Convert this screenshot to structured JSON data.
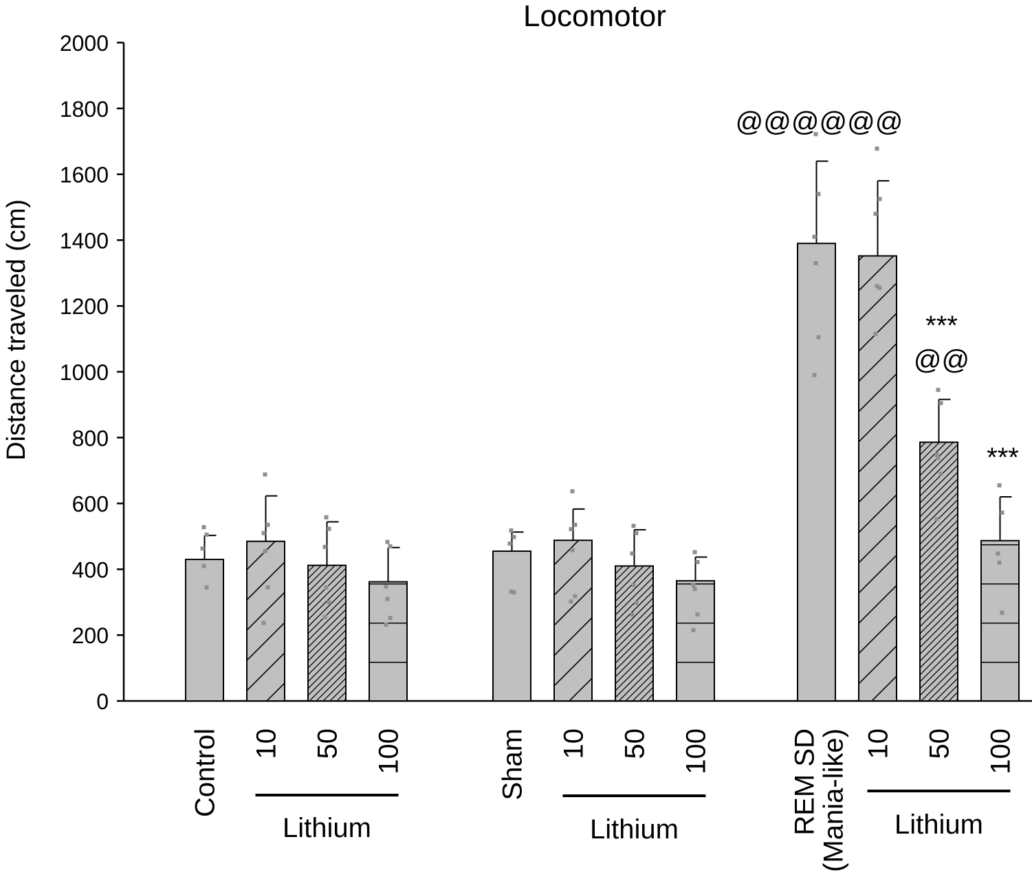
{
  "chart_data": {
    "type": "bar",
    "title": "Locomotor",
    "ylabel": "Distance traveled (cm)",
    "xlabel": "",
    "ylim": [
      0,
      2000
    ],
    "yticks": [
      0,
      200,
      400,
      600,
      800,
      1000,
      1200,
      1400,
      1600,
      1800,
      2000
    ],
    "grid": false,
    "colors": {
      "bar_fill": "#c0c0c0",
      "dots": "#8f8f8f",
      "stroke": "#000000"
    },
    "groups": [
      {
        "bars": [
          {
            "label": "Control",
            "value": 430,
            "error": 73,
            "pattern": "solid",
            "points": [
              528,
              505,
              463,
              410,
              345
            ]
          },
          {
            "label": "10",
            "value": 485,
            "error": 138,
            "pattern": "hatch-wide",
            "points": [
              688,
              535,
              510,
              455,
              345,
              237
            ]
          },
          {
            "label": "50",
            "value": 412,
            "error": 132,
            "pattern": "hatch-dense",
            "points": [
              558,
              523,
              468,
              345,
              300,
              255
            ]
          },
          {
            "label": "100",
            "value": 362,
            "error": 104,
            "pattern": "horizontal",
            "points": [
              483,
              470,
              348,
              310,
              252,
              232
            ]
          }
        ],
        "bracket_label": "Lithium"
      },
      {
        "bars": [
          {
            "label": "Sham",
            "value": 455,
            "error": 58,
            "pattern": "solid",
            "points": [
              518,
              498,
              478,
              332,
              330
            ]
          },
          {
            "label": "10",
            "value": 488,
            "error": 95,
            "pattern": "hatch-wide",
            "points": [
              637,
              535,
              522,
              458,
              318,
              302
            ]
          },
          {
            "label": "50",
            "value": 410,
            "error": 110,
            "pattern": "hatch-dense",
            "points": [
              532,
              510,
              448,
              352,
              298,
              262
            ]
          },
          {
            "label": "100",
            "value": 365,
            "error": 72,
            "pattern": "horizontal",
            "points": [
              452,
              422,
              352,
              340,
              263,
              215
            ]
          }
        ],
        "bracket_label": "Lithium"
      },
      {
        "bars": [
          {
            "label": "REM SD",
            "label2": "(Mania-like)",
            "value": 1390,
            "error": 250,
            "pattern": "solid",
            "points": [
              1722,
              1540,
              1410,
              1330,
              1105,
              990
            ],
            "annotation": [
              "@@@@@@"
            ]
          },
          {
            "label": "10",
            "value": 1352,
            "error": 228,
            "pattern": "hatch-wide",
            "points": [
              1678,
              1525,
              1480,
              1260,
              1255,
              1115
            ]
          },
          {
            "label": "50",
            "value": 786,
            "error": 130,
            "pattern": "hatch-dense",
            "points": [
              945,
              905,
              748,
              738,
              690,
              552
            ],
            "annotation": [
              "***",
              "@@"
            ]
          },
          {
            "label": "100",
            "value": 487,
            "error": 133,
            "pattern": "horizontal",
            "points": [
              655,
              572,
              448,
              420,
              268
            ],
            "annotation": [
              "***"
            ]
          }
        ],
        "bracket_label": "Lithium"
      }
    ]
  }
}
